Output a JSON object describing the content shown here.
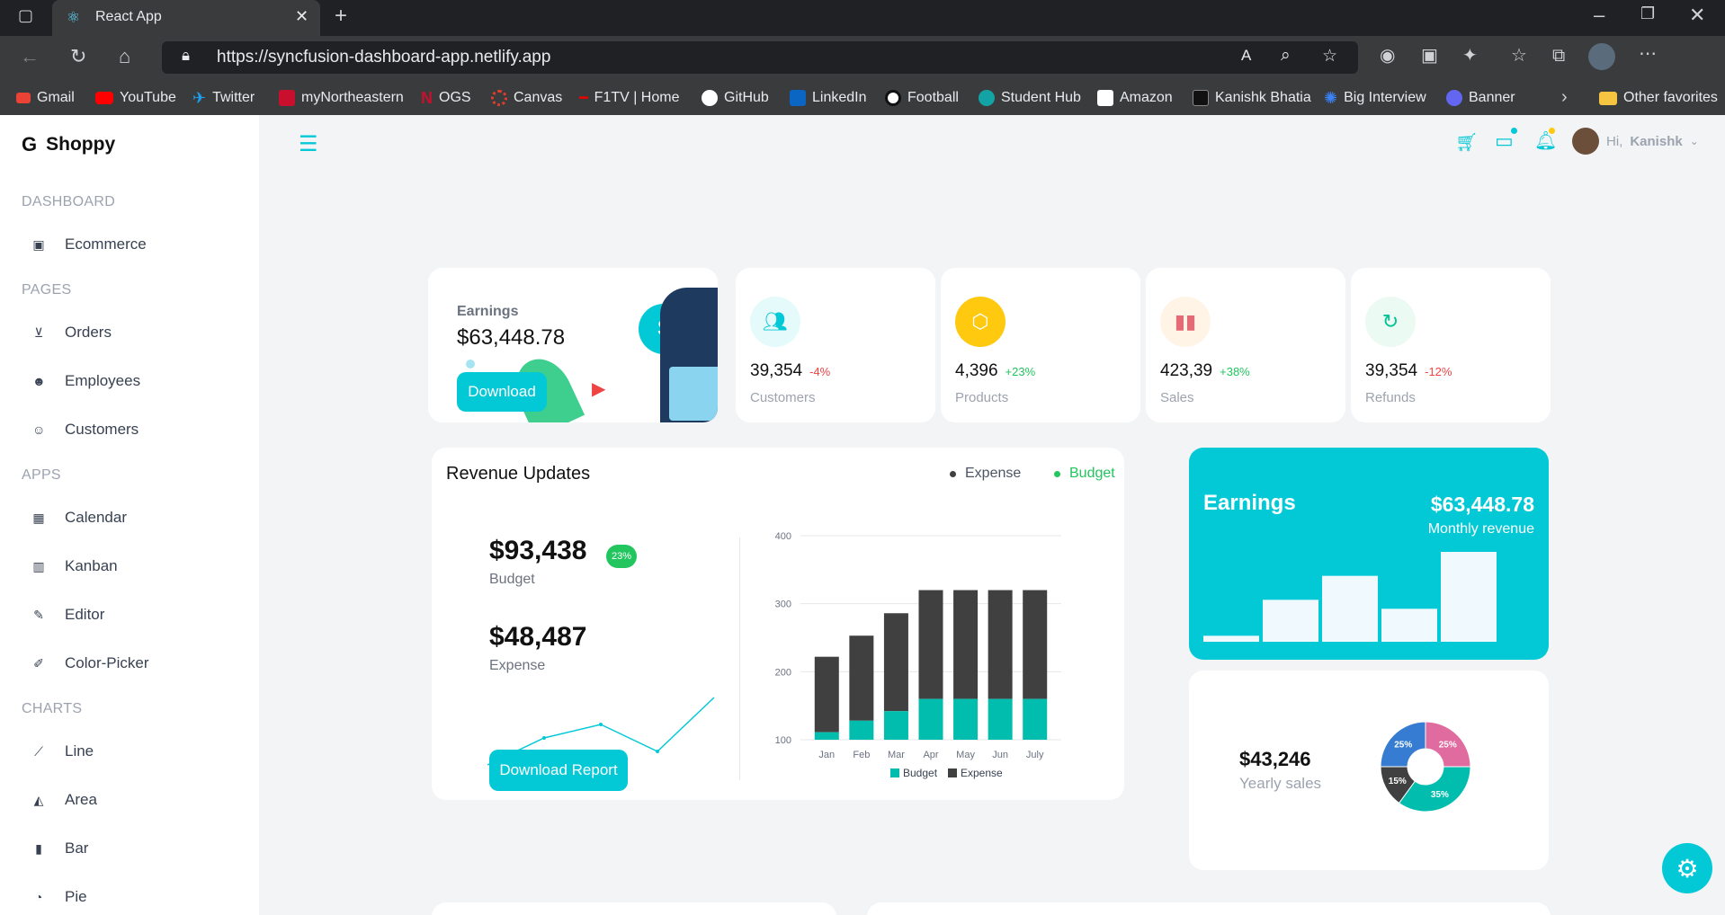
{
  "browser": {
    "tab_title": "React App",
    "url": "https://syncfusion-dashboard-app.netlify.app",
    "bookmarks": [
      "Gmail",
      "YouTube",
      "Twitter",
      "myNortheastern",
      "OGS",
      "Canvas",
      "F1TV | Home",
      "GitHub",
      "LinkedIn",
      "Football",
      "Student Hub",
      "Amazon",
      "Kanishk Bhatia",
      "Big Interview",
      "Banner"
    ],
    "other_favorites": "Other favorites"
  },
  "app": {
    "brand": "Shoppy",
    "user_greeting": "Hi,",
    "user_name": "Kanishk"
  },
  "sidebar": {
    "sections": [
      {
        "title": "DASHBOARD",
        "items": [
          "Ecommerce"
        ]
      },
      {
        "title": "PAGES",
        "items": [
          "Orders",
          "Employees",
          "Customers"
        ]
      },
      {
        "title": "APPS",
        "items": [
          "Calendar",
          "Kanban",
          "Editor",
          "Color-Picker"
        ]
      },
      {
        "title": "CHARTS",
        "items": [
          "Line",
          "Area",
          "Bar",
          "Pie"
        ]
      }
    ]
  },
  "earnings_card": {
    "label": "Earnings",
    "amount": "$63,448.78",
    "button": "Download"
  },
  "stats": [
    {
      "value": "39,354",
      "pct": "-4%",
      "label": "Customers",
      "pct_color": "#ef4444"
    },
    {
      "value": "4,396",
      "pct": "+23%",
      "label": "Products",
      "pct_color": "#22c55e"
    },
    {
      "value": "423,39",
      "pct": "+38%",
      "label": "Sales",
      "pct_color": "#22c55e"
    },
    {
      "value": "39,354",
      "pct": "-12%",
      "label": "Refunds",
      "pct_color": "#ef4444"
    }
  ],
  "revenue": {
    "title": "Revenue Updates",
    "legend_expense": "Expense",
    "legend_budget": "Budget",
    "budget_value": "$93,438",
    "budget_pct": "23%",
    "budget_label": "Budget",
    "expense_value": "$48,487",
    "expense_label": "Expense",
    "download_report": "Download Report"
  },
  "monthly": {
    "title": "Earnings",
    "amount": "$63,448.78",
    "subtitle": "Monthly revenue"
  },
  "yearly": {
    "amount": "$43,246",
    "label": "Yearly sales"
  },
  "chart_data": [
    {
      "type": "bar",
      "categories": [
        "Jan",
        "Feb",
        "Mar",
        "Apr",
        "May",
        "Jun",
        "July"
      ],
      "series": [
        {
          "name": "Budget",
          "values": [
            111,
            128,
            142,
            160,
            160,
            160,
            160
          ],
          "color": "#00bdae"
        },
        {
          "name": "Expense",
          "values": [
            222,
            253,
            286,
            320,
            320,
            320,
            320
          ],
          "color": "#404041"
        }
      ],
      "ylim": [
        100,
        400
      ],
      "yticks": [
        100,
        200,
        300,
        400
      ],
      "grid": true,
      "legend": "bottom"
    },
    {
      "type": "pie",
      "slices": [
        {
          "label": "25%",
          "value": 25,
          "color": "#e06c9f"
        },
        {
          "label": "35%",
          "value": 35,
          "color": "#00bdae"
        },
        {
          "label": "15%",
          "value": 15,
          "color": "#404041"
        },
        {
          "label": "25%",
          "value": 25,
          "color": "#357cd2"
        }
      ]
    },
    {
      "type": "line",
      "x": [
        1,
        2,
        3,
        4,
        5
      ],
      "values": [
        2,
        6,
        8,
        4,
        12
      ]
    },
    {
      "type": "bar",
      "values": [
        2,
        14,
        22,
        11,
        30
      ]
    }
  ]
}
